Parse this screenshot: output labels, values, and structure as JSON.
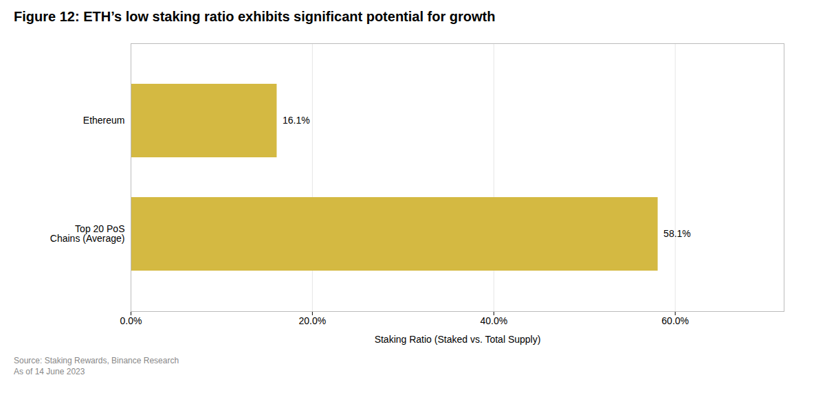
{
  "chart_data": {
    "type": "bar",
    "orientation": "horizontal",
    "title": "Figure 12: ETH’s low staking ratio exhibits significant potential for growth",
    "categories": [
      "Ethereum",
      "Top 20 PoS\nChains (Average)"
    ],
    "values": [
      16.1,
      58.1
    ],
    "value_labels": [
      "16.1%",
      "58.1%"
    ],
    "data_labels": true,
    "color": "#D4B942",
    "xlabel": "Staking Ratio (Staked vs. Total Supply)",
    "xlim": [
      0,
      72
    ],
    "xticks": [
      {
        "value": 0,
        "label": "0.0%"
      },
      {
        "value": 20,
        "label": "20.0%"
      },
      {
        "value": 40,
        "label": "40.0%"
      },
      {
        "value": 60,
        "label": "60.0%"
      }
    ],
    "grid": true,
    "source": "Source: Staking Rewards, Binance Research\nAs of 14 June 2023"
  }
}
